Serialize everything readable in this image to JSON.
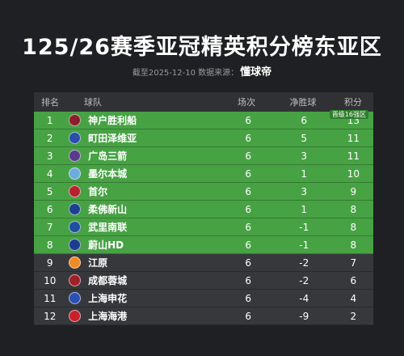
{
  "title": "125/26赛季亚冠精英积分榜东亚区",
  "subtitle": {
    "text": "截至2025-12-10 数据来源：",
    "brand": "懂球帝"
  },
  "table": {
    "headers": {
      "rank": "排名",
      "team": "球队",
      "played": "场次",
      "gd": "净胜球",
      "pts": "积分"
    },
    "qualification_label": "晋级16强区",
    "qualification_color": "#47a244",
    "rows": [
      {
        "rank": "1",
        "team": "神户胜利船",
        "played": "6",
        "gd": "6",
        "pts": "13",
        "qualified": true,
        "logo_color": "#8b1e2d",
        "logo_icon": "vissel-kobe-crest-icon"
      },
      {
        "rank": "2",
        "team": "町田泽维亚",
        "played": "6",
        "gd": "5",
        "pts": "11",
        "qualified": true,
        "logo_color": "#2a4fa8",
        "logo_icon": "machida-zelvia-crest-icon"
      },
      {
        "rank": "3",
        "team": "广岛三箭",
        "played": "6",
        "gd": "3",
        "pts": "11",
        "qualified": true,
        "logo_color": "#5a3a8a",
        "logo_icon": "sanfrecce-hiroshima-crest-icon"
      },
      {
        "rank": "4",
        "team": "墨尔本城",
        "played": "6",
        "gd": "1",
        "pts": "10",
        "qualified": true,
        "logo_color": "#6cabdd",
        "logo_icon": "melbourne-city-crest-icon"
      },
      {
        "rank": "5",
        "team": "首尔",
        "played": "6",
        "gd": "3",
        "pts": "9",
        "qualified": true,
        "logo_color": "#b8202d",
        "logo_icon": "fc-seoul-crest-icon"
      },
      {
        "rank": "6",
        "team": "柔佛新山",
        "played": "6",
        "gd": "1",
        "pts": "8",
        "qualified": true,
        "logo_color": "#1c3f94",
        "logo_icon": "johor-darul-tazim-crest-icon"
      },
      {
        "rank": "7",
        "team": "武里南联",
        "played": "6",
        "gd": "-1",
        "pts": "8",
        "qualified": true,
        "logo_color": "#1f4fa0",
        "logo_icon": "buriram-united-crest-icon"
      },
      {
        "rank": "8",
        "team": "蔚山HD",
        "played": "6",
        "gd": "-1",
        "pts": "8",
        "qualified": true,
        "logo_color": "#1b3d8f",
        "logo_icon": "ulsan-hd-crest-icon"
      },
      {
        "rank": "9",
        "team": "江原",
        "played": "6",
        "gd": "-2",
        "pts": "7",
        "qualified": false,
        "logo_color": "#f08a24",
        "logo_icon": "gangwon-fc-crest-icon"
      },
      {
        "rank": "10",
        "team": "成都蓉城",
        "played": "6",
        "gd": "-2",
        "pts": "6",
        "qualified": false,
        "logo_color": "#a0202a",
        "logo_icon": "chengdu-rongcheng-crest-icon"
      },
      {
        "rank": "11",
        "team": "上海申花",
        "played": "6",
        "gd": "-4",
        "pts": "4",
        "qualified": false,
        "logo_color": "#2c4fb5",
        "logo_icon": "shanghai-shenhua-crest-icon"
      },
      {
        "rank": "12",
        "team": "上海海港",
        "played": "6",
        "gd": "-9",
        "pts": "2",
        "qualified": false,
        "logo_color": "#c8202a",
        "logo_icon": "shanghai-port-crest-icon"
      }
    ]
  }
}
